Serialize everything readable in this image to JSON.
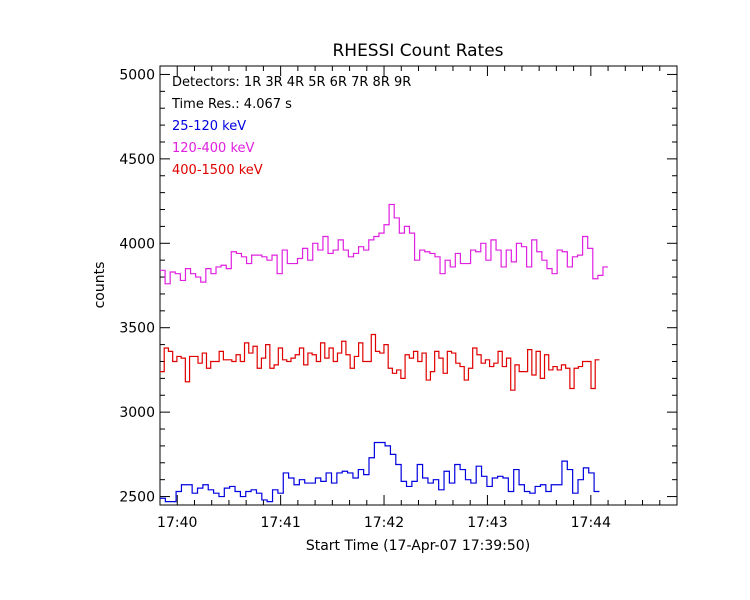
{
  "chart_data": {
    "type": "line",
    "style": "step",
    "title": "RHESSI Count Rates",
    "xlabel": "Start Time (17-Apr-07 17:39:50)",
    "ylabel": "counts",
    "xlim": [
      "17:39:50",
      "17:44:50"
    ],
    "ylim": [
      2450,
      5050
    ],
    "x_ticks": [
      "17:40",
      "17:41",
      "17:42",
      "17:43",
      "17:44"
    ],
    "y_ticks": [
      "2500",
      "3000",
      "3500",
      "4000",
      "4500",
      "5000"
    ],
    "grid": false,
    "legend_placement": "top-left",
    "annotations": [
      "Detectors:  1R 3R 4R 5R 6R 7R 8R 9R",
      "Time Res.: 4.067 s"
    ],
    "time_resolution_s": 4.067,
    "series": [
      {
        "name": "25-120 keV",
        "color": "#0000e0",
        "x_start": "17:39:50",
        "values": [
          2490,
          2470,
          2470,
          2530,
          2570,
          2570,
          2520,
          2550,
          2570,
          2540,
          2520,
          2500,
          2550,
          2560,
          2530,
          2500,
          2530,
          2540,
          2520,
          2480,
          2470,
          2540,
          2520,
          2640,
          2610,
          2570,
          2600,
          2580,
          2580,
          2610,
          2590,
          2640,
          2580,
          2640,
          2650,
          2640,
          2610,
          2660,
          2630,
          2730,
          2820,
          2820,
          2800,
          2750,
          2690,
          2590,
          2560,
          2590,
          2690,
          2610,
          2580,
          2600,
          2540,
          2650,
          2580,
          2690,
          2660,
          2600,
          2580,
          2680,
          2620,
          2560,
          2610,
          2620,
          2610,
          2530,
          2660,
          2570,
          2530,
          2520,
          2560,
          2570,
          2530,
          2570,
          2570,
          2710,
          2660,
          2520,
          2600,
          2670,
          2640,
          2530
        ],
        "x_end": "17:44:05"
      },
      {
        "name": "120-400 keV",
        "color": "#e020e0",
        "x_start": "17:39:50",
        "values": [
          3840,
          3760,
          3830,
          3820,
          3780,
          3850,
          3820,
          3800,
          3770,
          3850,
          3820,
          3860,
          3870,
          3850,
          3950,
          3940,
          3920,
          3880,
          3930,
          3930,
          3920,
          3900,
          3930,
          3820,
          3960,
          3880,
          3880,
          3910,
          3970,
          3900,
          4000,
          3960,
          4040,
          3940,
          3960,
          4020,
          3960,
          3920,
          3940,
          3980,
          3960,
          4020,
          4040,
          4060,
          4110,
          4230,
          4150,
          4060,
          4100,
          4060,
          3900,
          3960,
          3950,
          3940,
          3920,
          3820,
          3900,
          3860,
          3940,
          3880,
          3880,
          3960,
          3950,
          4000,
          3900,
          4020,
          3960,
          3860,
          3960,
          3890,
          4000,
          3980,
          3860,
          4020,
          3950,
          3900,
          3850,
          3820,
          3960,
          3950,
          3860,
          3920,
          3930,
          4040,
          3970,
          3790,
          3810,
          3860
        ],
        "x_end": "17:44:10"
      },
      {
        "name": "400-1500 keV",
        "color": "#e00000",
        "x_start": "17:39:50",
        "values": [
          3240,
          3380,
          3360,
          3300,
          3330,
          3320,
          3180,
          3330,
          3330,
          3290,
          3350,
          3260,
          3300,
          3300,
          3360,
          3310,
          3310,
          3300,
          3340,
          3300,
          3410,
          3350,
          3390,
          3260,
          3320,
          3400,
          3260,
          3280,
          3380,
          3310,
          3300,
          3320,
          3340,
          3380,
          3280,
          3350,
          3340,
          3300,
          3410,
          3320,
          3380,
          3300,
          3350,
          3420,
          3340,
          3260,
          3330,
          3410,
          3300,
          3300,
          3460,
          3360,
          3350,
          3400,
          3260,
          3230,
          3250,
          3200,
          3340,
          3320,
          3360,
          3300,
          3350,
          3190,
          3240,
          3360,
          3320,
          3230,
          3360,
          3350,
          3290,
          3270,
          3190,
          3260,
          3380,
          3340,
          3290,
          3310,
          3270,
          3290,
          3360,
          3270,
          3320,
          3130,
          3280,
          3240,
          3240,
          3370,
          3220,
          3360,
          3200,
          3340,
          3250,
          3270,
          3250,
          3280,
          3260,
          3140,
          3260,
          3270,
          3300,
          3300,
          3140,
          3310
        ],
        "x_end": "17:44:05"
      }
    ]
  }
}
